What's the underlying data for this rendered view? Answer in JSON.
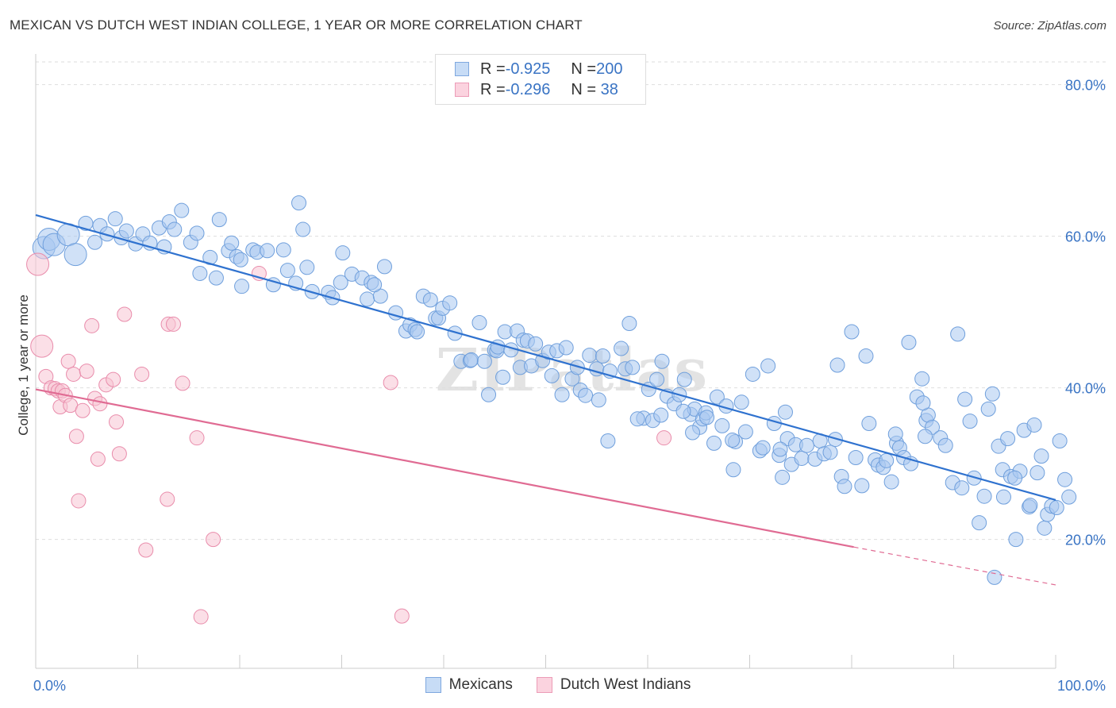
{
  "title": "MEXICAN VS DUTCH WEST INDIAN COLLEGE, 1 YEAR OR MORE CORRELATION CHART",
  "source": "Source: ZipAtlas.com",
  "watermark": "ZIPatlas",
  "chart_data": {
    "type": "scatter",
    "xlabel": "",
    "ylabel": "College, 1 year or more",
    "xlim": [
      0,
      100
    ],
    "ylim": [
      3,
      83
    ],
    "x_tick_labels": [
      "0.0%",
      "100.0%"
    ],
    "y_ticks": [
      20,
      40,
      60,
      80
    ],
    "y_tick_labels": [
      "20.0%",
      "40.0%",
      "60.0%",
      "80.0%"
    ],
    "grid": "horizontal dashed",
    "legend_position": "top-center",
    "legend": {
      "rows": [
        {
          "r_label": "R = ",
          "r_value": "-0.925",
          "n_label": "N = ",
          "n_value": "200"
        },
        {
          "r_label": "R = ",
          "r_value": "-0.296",
          "n_label": "N = ",
          "n_value": " 38"
        }
      ]
    },
    "series": [
      {
        "name": "Mexicans",
        "color": "#a9c8f0",
        "stroke": "#6f9fdc",
        "trend_color": "#2f72cf",
        "trend": {
          "x": [
            0,
            100
          ],
          "y": [
            62.8,
            25.2
          ]
        },
        "points": [
          [
            0.8,
            58.5
          ],
          [
            1.3,
            59.6
          ],
          [
            1.8,
            58.9
          ],
          [
            3.2,
            60.2
          ],
          [
            3.9,
            57.6
          ],
          [
            4.9,
            61.7
          ],
          [
            5.8,
            59.2
          ],
          [
            6.3,
            61.4
          ],
          [
            7.0,
            60.3
          ],
          [
            7.8,
            62.3
          ],
          [
            8.4,
            59.8
          ],
          [
            8.9,
            60.7
          ],
          [
            9.8,
            59.0
          ],
          [
            10.5,
            60.3
          ],
          [
            11.2,
            59.1
          ],
          [
            12.1,
            61.1
          ],
          [
            12.6,
            58.6
          ],
          [
            13.1,
            61.9
          ],
          [
            13.6,
            60.9
          ],
          [
            14.3,
            63.4
          ],
          [
            15.2,
            59.2
          ],
          [
            15.8,
            60.4
          ],
          [
            16.1,
            55.1
          ],
          [
            17.1,
            57.2
          ],
          [
            17.7,
            54.5
          ],
          [
            18.0,
            62.2
          ],
          [
            18.9,
            58.1
          ],
          [
            19.2,
            59.1
          ],
          [
            19.7,
            57.3
          ],
          [
            20.1,
            56.9
          ],
          [
            21.3,
            58.2
          ],
          [
            21.7,
            57.9
          ],
          [
            20.2,
            53.4
          ],
          [
            22.7,
            58.1
          ],
          [
            23.3,
            53.6
          ],
          [
            24.3,
            58.2
          ],
          [
            24.7,
            55.5
          ],
          [
            25.5,
            53.8
          ],
          [
            26.2,
            60.9
          ],
          [
            26.6,
            55.9
          ],
          [
            27.1,
            52.7
          ],
          [
            28.7,
            52.6
          ],
          [
            29.1,
            51.9
          ],
          [
            29.9,
            53.9
          ],
          [
            30.1,
            57.8
          ],
          [
            31.0,
            55.0
          ],
          [
            32.0,
            54.5
          ],
          [
            32.5,
            51.7
          ],
          [
            32.9,
            53.9
          ],
          [
            33.8,
            52.1
          ],
          [
            34.2,
            56.0
          ],
          [
            25.8,
            64.4
          ],
          [
            33.2,
            53.6
          ],
          [
            35.3,
            49.9
          ],
          [
            36.3,
            47.5
          ],
          [
            36.7,
            48.3
          ],
          [
            37.2,
            47.7
          ],
          [
            37.4,
            47.4
          ],
          [
            38.0,
            52.1
          ],
          [
            38.7,
            51.6
          ],
          [
            39.2,
            49.2
          ],
          [
            39.5,
            49.2
          ],
          [
            39.9,
            50.5
          ],
          [
            40.6,
            51.2
          ],
          [
            41.1,
            47.2
          ],
          [
            41.7,
            43.5
          ],
          [
            42.6,
            43.6
          ],
          [
            42.7,
            43.7
          ],
          [
            43.5,
            48.6
          ],
          [
            44.0,
            43.5
          ],
          [
            44.4,
            39.1
          ],
          [
            45.0,
            45.0
          ],
          [
            45.2,
            44.9
          ],
          [
            45.3,
            45.4
          ],
          [
            45.8,
            41.4
          ],
          [
            46.0,
            47.4
          ],
          [
            46.6,
            45.0
          ],
          [
            47.2,
            47.5
          ],
          [
            47.5,
            42.7
          ],
          [
            47.8,
            46.3
          ],
          [
            48.2,
            46.2
          ],
          [
            48.6,
            42.9
          ],
          [
            49.0,
            45.8
          ],
          [
            49.7,
            43.6
          ],
          [
            50.3,
            44.7
          ],
          [
            50.6,
            41.6
          ],
          [
            51.1,
            44.9
          ],
          [
            51.6,
            39.1
          ],
          [
            52.0,
            45.3
          ],
          [
            52.6,
            41.2
          ],
          [
            53.1,
            42.7
          ],
          [
            53.4,
            39.7
          ],
          [
            53.9,
            39.0
          ],
          [
            54.3,
            44.3
          ],
          [
            55.0,
            42.5
          ],
          [
            55.2,
            38.4
          ],
          [
            55.6,
            44.2
          ],
          [
            56.3,
            42.2
          ],
          [
            57.4,
            45.2
          ],
          [
            57.8,
            42.5
          ],
          [
            58.2,
            48.5
          ],
          [
            58.5,
            42.7
          ],
          [
            59.6,
            36.0
          ],
          [
            60.1,
            39.8
          ],
          [
            60.5,
            35.7
          ],
          [
            60.9,
            41.1
          ],
          [
            61.4,
            43.5
          ],
          [
            61.9,
            38.9
          ],
          [
            62.6,
            37.9
          ],
          [
            63.1,
            39.1
          ],
          [
            63.6,
            41.1
          ],
          [
            64.2,
            36.5
          ],
          [
            64.6,
            37.2
          ],
          [
            65.1,
            34.8
          ],
          [
            65.4,
            35.9
          ],
          [
            65.7,
            36.7
          ],
          [
            66.5,
            32.7
          ],
          [
            66.8,
            38.8
          ],
          [
            67.3,
            35.0
          ],
          [
            67.7,
            37.6
          ],
          [
            68.4,
            29.2
          ],
          [
            68.6,
            32.9
          ],
          [
            69.2,
            38.1
          ],
          [
            69.6,
            34.2
          ],
          [
            70.3,
            41.8
          ],
          [
            71.0,
            31.7
          ],
          [
            71.3,
            32.1
          ],
          [
            71.8,
            42.9
          ],
          [
            72.4,
            35.3
          ],
          [
            72.9,
            31.1
          ],
          [
            73.2,
            28.2
          ],
          [
            73.7,
            33.3
          ],
          [
            74.1,
            29.9
          ],
          [
            74.5,
            32.5
          ],
          [
            75.1,
            30.7
          ],
          [
            75.6,
            32.4
          ],
          [
            76.4,
            30.6
          ],
          [
            76.9,
            33.0
          ],
          [
            77.3,
            31.3
          ],
          [
            77.9,
            31.5
          ],
          [
            78.4,
            33.2
          ],
          [
            78.6,
            43.0
          ],
          [
            79.0,
            28.3
          ],
          [
            79.3,
            27.0
          ],
          [
            80.0,
            47.4
          ],
          [
            80.4,
            30.8
          ],
          [
            81.0,
            27.1
          ],
          [
            81.4,
            44.2
          ],
          [
            81.7,
            35.3
          ],
          [
            82.3,
            30.5
          ],
          [
            82.6,
            29.8
          ],
          [
            83.1,
            29.5
          ],
          [
            83.4,
            30.4
          ],
          [
            83.9,
            27.6
          ],
          [
            84.4,
            32.7
          ],
          [
            84.7,
            32.1
          ],
          [
            85.1,
            30.8
          ],
          [
            85.8,
            30.0
          ],
          [
            86.4,
            38.8
          ],
          [
            86.9,
            41.2
          ],
          [
            87.3,
            35.7
          ],
          [
            87.5,
            36.4
          ],
          [
            87.9,
            34.8
          ],
          [
            88.7,
            33.4
          ],
          [
            89.2,
            32.4
          ],
          [
            89.9,
            27.5
          ],
          [
            90.4,
            47.1
          ],
          [
            90.8,
            26.8
          ],
          [
            91.1,
            38.5
          ],
          [
            91.6,
            35.6
          ],
          [
            92.0,
            28.1
          ],
          [
            92.5,
            22.2
          ],
          [
            93.0,
            25.7
          ],
          [
            93.4,
            37.2
          ],
          [
            93.8,
            39.2
          ],
          [
            94.4,
            32.3
          ],
          [
            94.8,
            29.2
          ],
          [
            95.3,
            33.3
          ],
          [
            95.6,
            28.3
          ],
          [
            96.1,
            20.0
          ],
          [
            96.5,
            29.0
          ],
          [
            96.9,
            34.4
          ],
          [
            97.4,
            24.3
          ],
          [
            97.9,
            35.1
          ],
          [
            98.2,
            28.8
          ],
          [
            98.6,
            31.0
          ],
          [
            98.9,
            21.5
          ],
          [
            99.2,
            23.3
          ],
          [
            99.6,
            24.4
          ],
          [
            100.1,
            24.2
          ],
          [
            100.4,
            33.0
          ],
          [
            100.9,
            27.9
          ],
          [
            101.3,
            25.6
          ],
          [
            94.0,
            15.0
          ],
          [
            56.1,
            33.0
          ],
          [
            61.3,
            36.4
          ],
          [
            65.8,
            36.1
          ],
          [
            68.3,
            33.1
          ],
          [
            73.5,
            36.8
          ],
          [
            85.6,
            46.0
          ],
          [
            87.2,
            33.6
          ],
          [
            73.0,
            31.9
          ],
          [
            84.3,
            33.9
          ],
          [
            94.9,
            25.6
          ],
          [
            87.0,
            38.0
          ],
          [
            97.5,
            24.5
          ],
          [
            63.5,
            36.9
          ],
          [
            64.4,
            34.1
          ],
          [
            59.0,
            35.9
          ],
          [
            96.0,
            28.1
          ]
        ]
      },
      {
        "name": "Dutch West Indians",
        "color": "#f8c4d4",
        "stroke": "#e98cab",
        "trend_color": "#e06b93",
        "trend": {
          "x": [
            0,
            80.2
          ],
          "y": [
            39.8,
            19.0
          ]
        },
        "trend_dashed": {
          "x": [
            80.2,
            100
          ],
          "y": [
            19.0,
            14.0
          ]
        },
        "points": [
          [
            0.2,
            56.3
          ],
          [
            0.6,
            45.5
          ],
          [
            1.0,
            41.5
          ],
          [
            1.5,
            40.0
          ],
          [
            1.9,
            39.9
          ],
          [
            2.2,
            39.6
          ],
          [
            2.4,
            37.5
          ],
          [
            2.6,
            39.6
          ],
          [
            2.9,
            39.0
          ],
          [
            3.2,
            43.5
          ],
          [
            3.4,
            37.7
          ],
          [
            3.7,
            41.8
          ],
          [
            4.0,
            33.6
          ],
          [
            4.2,
            25.1
          ],
          [
            4.6,
            37.0
          ],
          [
            5.0,
            42.2
          ],
          [
            5.5,
            48.2
          ],
          [
            5.8,
            38.6
          ],
          [
            6.1,
            30.6
          ],
          [
            6.3,
            37.9
          ],
          [
            6.9,
            40.4
          ],
          [
            7.6,
            41.1
          ],
          [
            7.9,
            35.5
          ],
          [
            8.2,
            31.3
          ],
          [
            8.7,
            49.7
          ],
          [
            10.4,
            41.8
          ],
          [
            10.8,
            18.6
          ],
          [
            12.9,
            25.3
          ],
          [
            13.0,
            48.4
          ],
          [
            13.5,
            48.4
          ],
          [
            14.4,
            40.6
          ],
          [
            15.8,
            33.4
          ],
          [
            16.2,
            9.8
          ],
          [
            17.4,
            20.0
          ],
          [
            21.9,
            55.1
          ],
          [
            34.8,
            40.7
          ],
          [
            35.9,
            9.9
          ],
          [
            61.6,
            33.4
          ]
        ]
      }
    ]
  }
}
